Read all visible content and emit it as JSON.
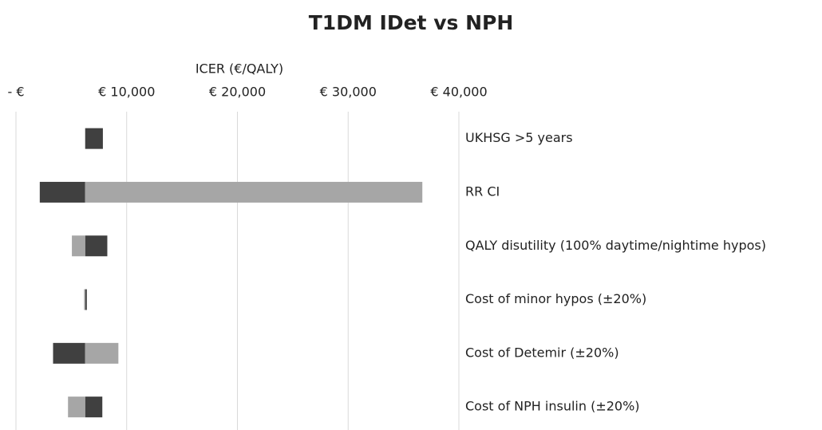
{
  "chart_data": {
    "type": "tornado",
    "title": "T1DM IDet vs NPH",
    "x_label": "ICER (€/QALY)",
    "categories": [
      "UKHSG >5 years",
      "RR CI",
      "QALY disutility (100% daytime/nightime hypos)",
      "Cost of minor hypos (±20%)",
      "Cost of Detemir (±20%)",
      "Cost of NPH insulin (±20%)"
    ],
    "base": 6250,
    "series": [
      {
        "color": "#404040",
        "values": [
          7850,
          2150,
          8250,
          6400,
          3350,
          7800
        ]
      },
      {
        "color": "#a6a6a6",
        "values": [
          null,
          36700,
          5050,
          6150,
          9250,
          4700
        ]
      }
    ],
    "xlim": [
      0,
      40000
    ],
    "xticks": [
      {
        "value": 0,
        "label": "- €"
      },
      {
        "value": 10000,
        "label": "€ 10,000"
      },
      {
        "value": 20000,
        "label": "€ 20,000"
      },
      {
        "value": 30000,
        "label": "€ 30,000"
      },
      {
        "value": 40000,
        "label": "€ 40,000"
      }
    ],
    "grid": true
  }
}
